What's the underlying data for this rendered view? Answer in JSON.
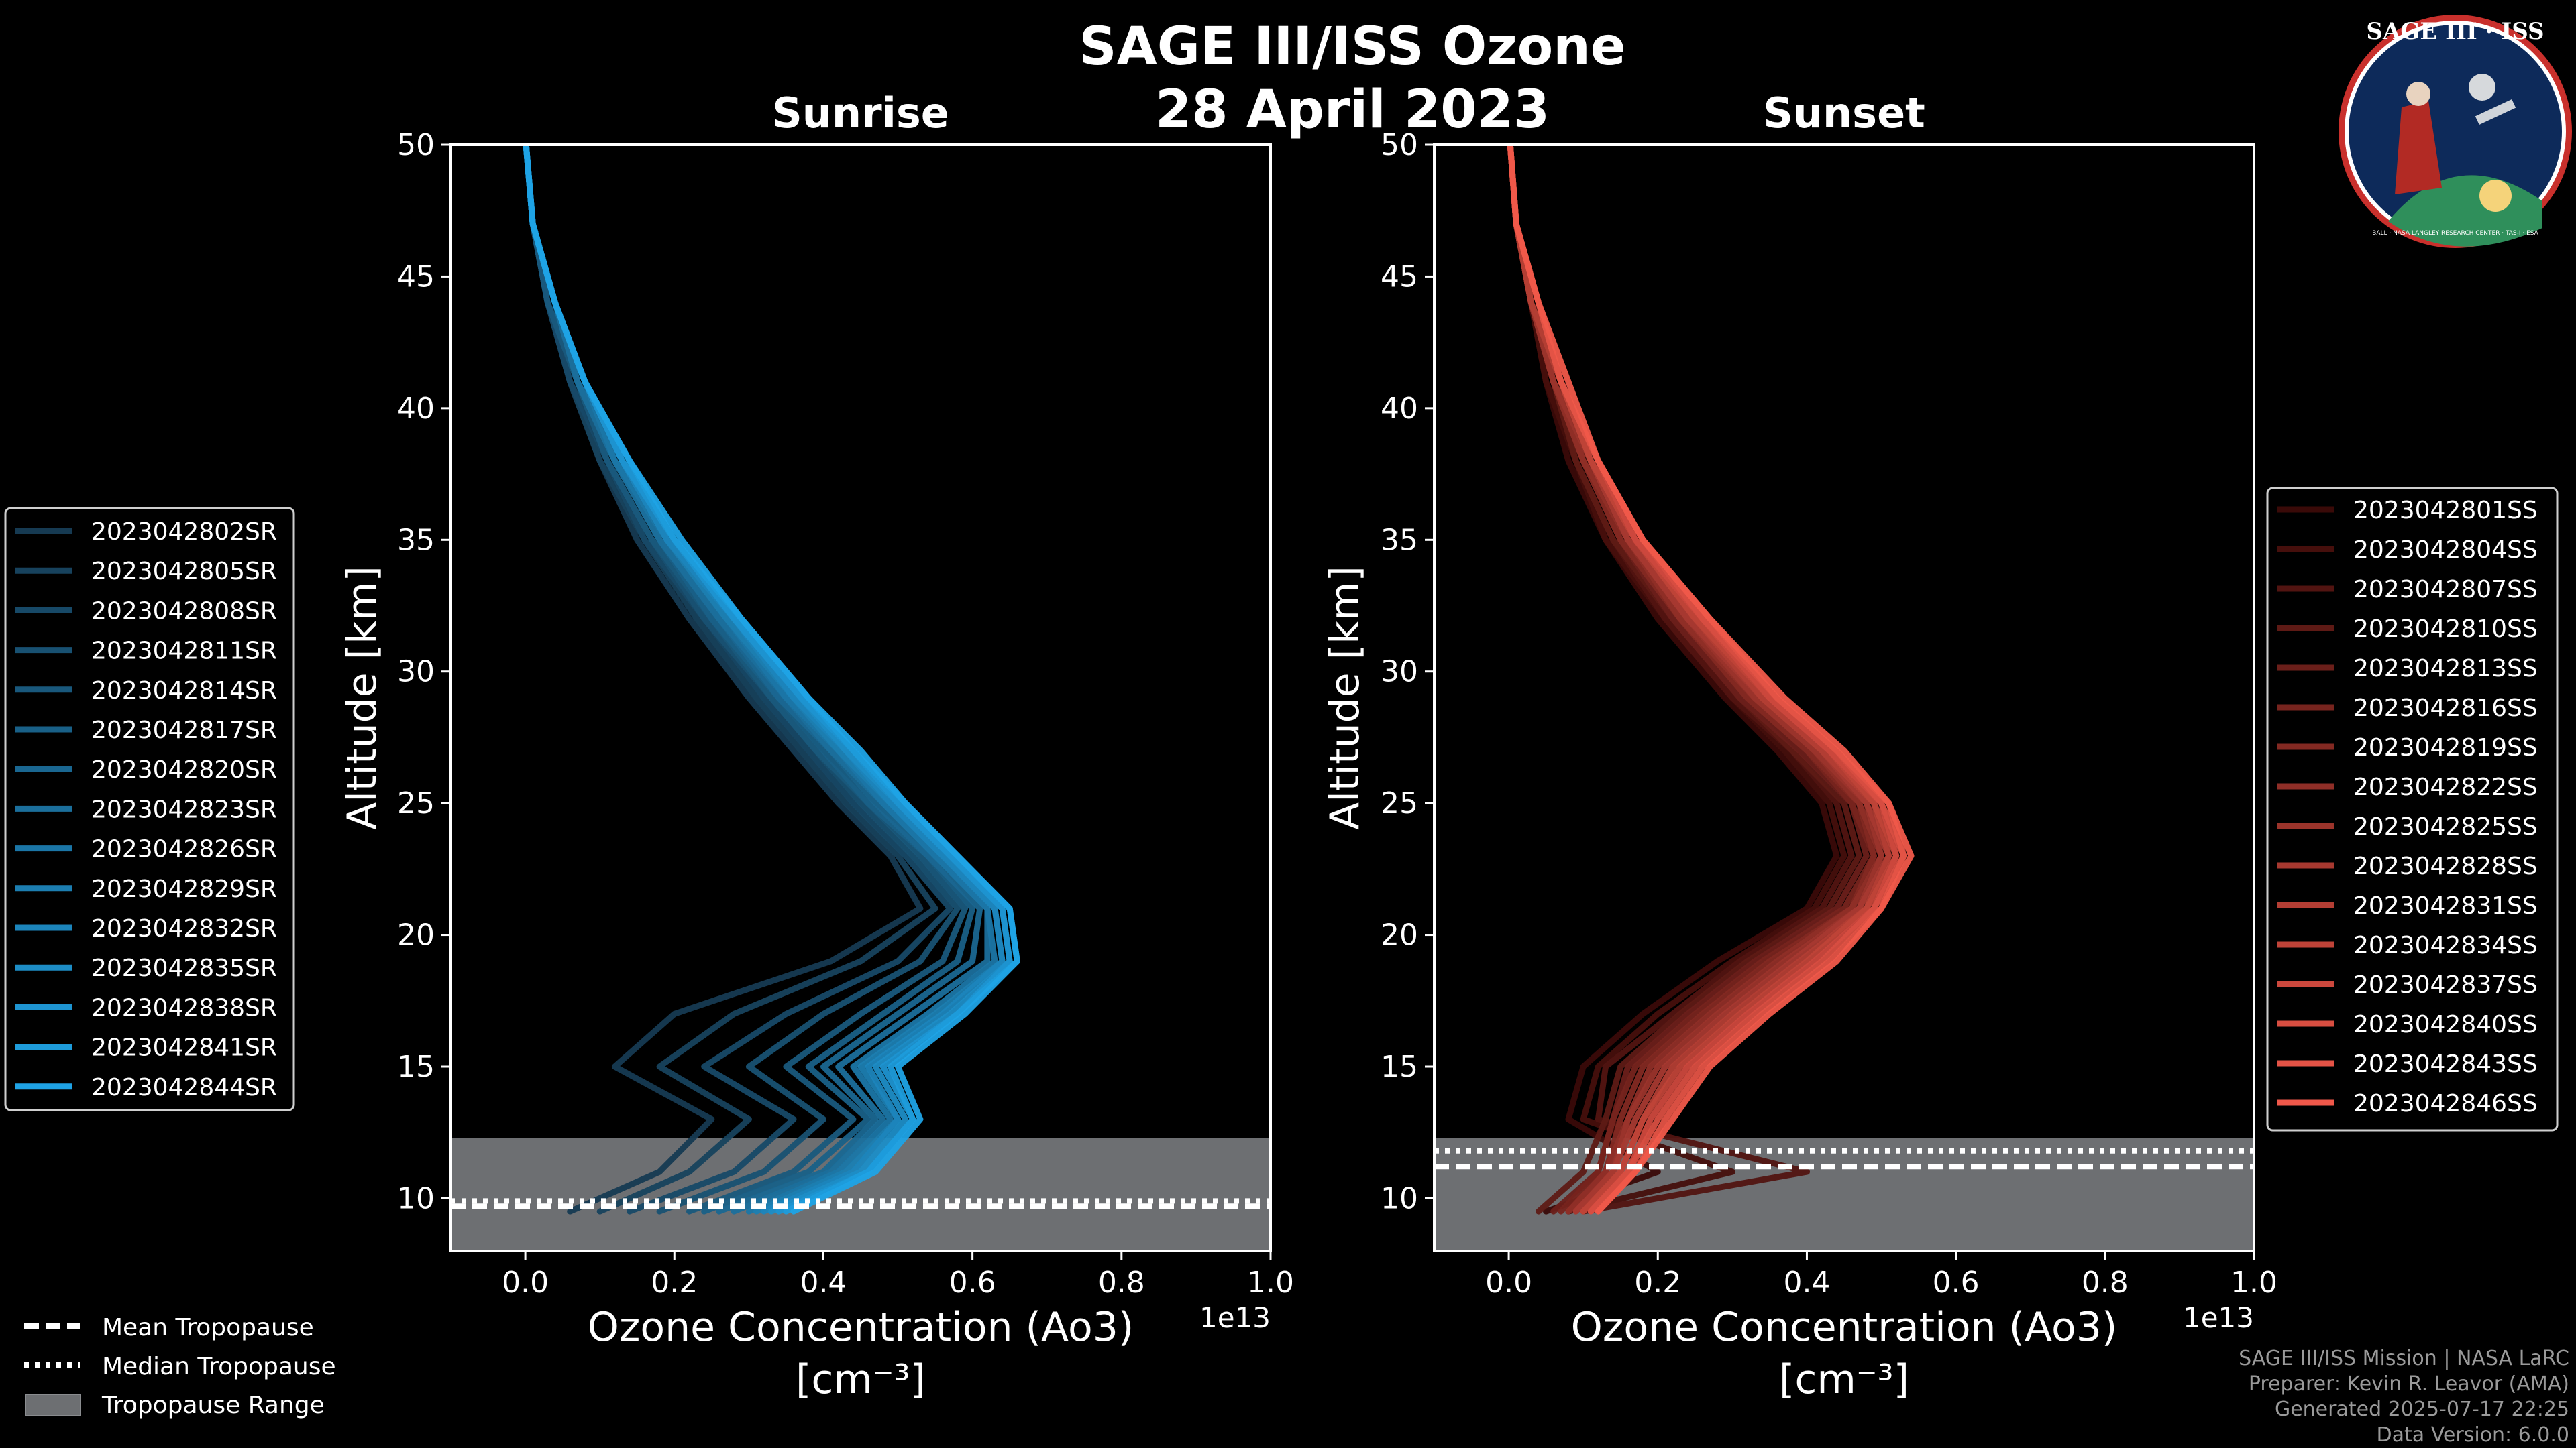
{
  "title_line1": "SAGE III/ISS Ozone",
  "title_line2": "28 April 2023",
  "colors": {
    "background": "#000000",
    "sunrise_light": "#1fa3e6",
    "sunrise_dark": "#163a52",
    "sunset_light": "#f0584a",
    "sunset_dark": "#3a0a08",
    "tropopause_fill": "#6d6f72",
    "axes": "#ffffff"
  },
  "logo": {
    "name": "SAGE III · ISS",
    "ring_text": "BALL · NASA LANGLEY RESEARCH CENTER · TAS-I · ESA"
  },
  "common_legend": {
    "mean": "Mean Tropopause",
    "median": "Median Tropopause",
    "range": "Tropopause Range"
  },
  "credits": {
    "line1": "SAGE III/ISS Mission | NASA LaRC",
    "line2": "Preparer: Kevin R. Leavor (AMA)",
    "line3": "Generated 2025-07-17 22:25",
    "line4": "Data Version: 6.0.0"
  },
  "chart_data": [
    {
      "type": "line",
      "title": "Sunrise",
      "xlabel": "Ozone Concentration (Ao3)",
      "xunit": "[cm⁻³]",
      "ylabel": "Altitude [km]",
      "offset_text": "1e13",
      "xlim": [
        -0.1,
        1.0
      ],
      "ylim": [
        8,
        50
      ],
      "xticks": [
        "0.0",
        "0.2",
        "0.4",
        "0.6",
        "0.8",
        "1.0"
      ],
      "xtick_values": [
        0.0,
        0.2,
        0.4,
        0.6,
        0.8,
        1.0
      ],
      "yticks": [
        "10",
        "15",
        "20",
        "25",
        "30",
        "35",
        "40",
        "45",
        "50"
      ],
      "ytick_values": [
        10,
        15,
        20,
        25,
        30,
        35,
        40,
        45,
        50
      ],
      "tropopause": {
        "mean": 9.7,
        "median": 9.9,
        "range": [
          8,
          12.3
        ]
      },
      "altitudes": [
        50,
        47,
        44,
        41,
        38,
        35,
        32,
        29,
        27,
        25,
        23,
        21,
        19,
        17,
        15,
        13,
        11,
        9.5
      ],
      "series": [
        {
          "name": "2023042802SR",
          "values": [
            0.001,
            0.01,
            0.03,
            0.06,
            0.1,
            0.15,
            0.22,
            0.3,
            0.36,
            0.42,
            0.49,
            0.53,
            0.41,
            0.2,
            0.12,
            0.25,
            0.18,
            0.06
          ]
        },
        {
          "name": "2023042805SR",
          "values": [
            0.001,
            0.01,
            0.03,
            0.06,
            0.1,
            0.16,
            0.23,
            0.31,
            0.37,
            0.43,
            0.5,
            0.55,
            0.45,
            0.28,
            0.18,
            0.3,
            0.22,
            0.1
          ]
        },
        {
          "name": "2023042808SR",
          "values": [
            0.001,
            0.01,
            0.03,
            0.06,
            0.11,
            0.16,
            0.24,
            0.32,
            0.38,
            0.44,
            0.51,
            0.57,
            0.5,
            0.35,
            0.24,
            0.36,
            0.28,
            0.14
          ]
        },
        {
          "name": "2023042811SR",
          "values": [
            0.001,
            0.01,
            0.03,
            0.07,
            0.11,
            0.17,
            0.24,
            0.33,
            0.39,
            0.45,
            0.52,
            0.58,
            0.53,
            0.4,
            0.3,
            0.4,
            0.32,
            0.18
          ]
        },
        {
          "name": "2023042814SR",
          "values": [
            0.001,
            0.01,
            0.03,
            0.07,
            0.11,
            0.17,
            0.25,
            0.33,
            0.39,
            0.46,
            0.53,
            0.59,
            0.56,
            0.45,
            0.35,
            0.44,
            0.36,
            0.22
          ]
        },
        {
          "name": "2023042817SR",
          "values": [
            0.001,
            0.01,
            0.04,
            0.07,
            0.12,
            0.18,
            0.25,
            0.34,
            0.4,
            0.46,
            0.54,
            0.6,
            0.58,
            0.48,
            0.38,
            0.46,
            0.38,
            0.24
          ]
        },
        {
          "name": "2023042820SR",
          "values": [
            0.001,
            0.01,
            0.04,
            0.07,
            0.12,
            0.18,
            0.26,
            0.34,
            0.41,
            0.47,
            0.54,
            0.61,
            0.6,
            0.5,
            0.4,
            0.47,
            0.4,
            0.26
          ]
        },
        {
          "name": "2023042823SR",
          "values": [
            0.001,
            0.01,
            0.04,
            0.07,
            0.12,
            0.18,
            0.26,
            0.35,
            0.41,
            0.48,
            0.55,
            0.62,
            0.62,
            0.52,
            0.42,
            0.48,
            0.41,
            0.28
          ]
        },
        {
          "name": "2023042826SR",
          "values": [
            0.001,
            0.01,
            0.04,
            0.08,
            0.12,
            0.19,
            0.27,
            0.35,
            0.42,
            0.48,
            0.55,
            0.62,
            0.63,
            0.54,
            0.44,
            0.49,
            0.42,
            0.3
          ]
        },
        {
          "name": "2023042829SR",
          "values": [
            0.001,
            0.01,
            0.04,
            0.08,
            0.13,
            0.19,
            0.27,
            0.36,
            0.42,
            0.49,
            0.56,
            0.63,
            0.64,
            0.55,
            0.45,
            0.5,
            0.43,
            0.31
          ]
        },
        {
          "name": "2023042832SR",
          "values": [
            0.001,
            0.01,
            0.04,
            0.08,
            0.13,
            0.19,
            0.28,
            0.36,
            0.43,
            0.49,
            0.56,
            0.63,
            0.64,
            0.56,
            0.46,
            0.5,
            0.44,
            0.32
          ]
        },
        {
          "name": "2023042835SR",
          "values": [
            0.001,
            0.01,
            0.04,
            0.08,
            0.13,
            0.2,
            0.28,
            0.37,
            0.43,
            0.5,
            0.57,
            0.64,
            0.65,
            0.57,
            0.47,
            0.51,
            0.45,
            0.33
          ]
        },
        {
          "name": "2023042838SR",
          "values": [
            0.001,
            0.01,
            0.04,
            0.08,
            0.13,
            0.2,
            0.28,
            0.37,
            0.44,
            0.5,
            0.57,
            0.64,
            0.65,
            0.58,
            0.48,
            0.52,
            0.46,
            0.34
          ]
        },
        {
          "name": "2023042841SR",
          "values": [
            0.001,
            0.01,
            0.04,
            0.08,
            0.14,
            0.2,
            0.29,
            0.38,
            0.44,
            0.51,
            0.58,
            0.65,
            0.66,
            0.58,
            0.49,
            0.52,
            0.46,
            0.35
          ]
        },
        {
          "name": "2023042844SR",
          "values": [
            0.001,
            0.01,
            0.04,
            0.08,
            0.14,
            0.21,
            0.29,
            0.38,
            0.45,
            0.51,
            0.58,
            0.65,
            0.66,
            0.59,
            0.5,
            0.53,
            0.47,
            0.36
          ]
        }
      ]
    },
    {
      "type": "line",
      "title": "Sunset",
      "xlabel": "Ozone Concentration (Ao3)",
      "xunit": "[cm⁻³]",
      "ylabel": "Altitude [km]",
      "offset_text": "1e13",
      "xlim": [
        -0.1,
        1.0
      ],
      "ylim": [
        8,
        50
      ],
      "xticks": [
        "0.0",
        "0.2",
        "0.4",
        "0.6",
        "0.8",
        "1.0"
      ],
      "xtick_values": [
        0.0,
        0.2,
        0.4,
        0.6,
        0.8,
        1.0
      ],
      "yticks": [
        "10",
        "15",
        "20",
        "25",
        "30",
        "35",
        "40",
        "45",
        "50"
      ],
      "ytick_values": [
        10,
        15,
        20,
        25,
        30,
        35,
        40,
        45,
        50
      ],
      "tropopause": {
        "mean": 11.2,
        "median": 11.8,
        "range": [
          8,
          12.3
        ]
      },
      "altitudes": [
        50,
        47,
        44,
        41,
        38,
        35,
        32,
        29,
        27,
        25,
        23,
        21,
        19,
        17,
        15,
        13,
        11,
        9.5
      ],
      "series": [
        {
          "name": "2023042801SS",
          "values": [
            0.002,
            0.01,
            0.03,
            0.05,
            0.08,
            0.13,
            0.2,
            0.29,
            0.36,
            0.42,
            0.44,
            0.4,
            0.28,
            0.18,
            0.1,
            0.08,
            0.2,
            0.05
          ]
        },
        {
          "name": "2023042804SS",
          "values": [
            0.002,
            0.01,
            0.03,
            0.05,
            0.09,
            0.13,
            0.21,
            0.3,
            0.37,
            0.43,
            0.45,
            0.41,
            0.3,
            0.2,
            0.12,
            0.1,
            0.3,
            0.08
          ]
        },
        {
          "name": "2023042807SS",
          "values": [
            0.002,
            0.01,
            0.03,
            0.06,
            0.09,
            0.14,
            0.21,
            0.3,
            0.38,
            0.44,
            0.46,
            0.42,
            0.31,
            0.22,
            0.13,
            0.12,
            0.4,
            0.1
          ]
        },
        {
          "name": "2023042810SS",
          "values": [
            0.002,
            0.01,
            0.03,
            0.06,
            0.09,
            0.14,
            0.22,
            0.31,
            0.38,
            0.45,
            0.47,
            0.43,
            0.32,
            0.23,
            0.15,
            0.13,
            0.1,
            0.04
          ]
        },
        {
          "name": "2023042813SS",
          "values": [
            0.002,
            0.01,
            0.03,
            0.06,
            0.1,
            0.15,
            0.22,
            0.31,
            0.39,
            0.46,
            0.48,
            0.44,
            0.33,
            0.24,
            0.16,
            0.14,
            0.12,
            0.06
          ]
        },
        {
          "name": "2023042816SS",
          "values": [
            0.002,
            0.01,
            0.03,
            0.06,
            0.1,
            0.15,
            0.23,
            0.32,
            0.4,
            0.46,
            0.49,
            0.45,
            0.34,
            0.25,
            0.17,
            0.14,
            0.12,
            0.07
          ]
        },
        {
          "name": "2023042819SS",
          "values": [
            0.002,
            0.01,
            0.03,
            0.06,
            0.1,
            0.15,
            0.23,
            0.32,
            0.4,
            0.47,
            0.49,
            0.46,
            0.35,
            0.26,
            0.18,
            0.15,
            0.13,
            0.08
          ]
        },
        {
          "name": "2023042822SS",
          "values": [
            0.002,
            0.01,
            0.03,
            0.06,
            0.1,
            0.16,
            0.23,
            0.33,
            0.41,
            0.47,
            0.5,
            0.46,
            0.36,
            0.27,
            0.19,
            0.16,
            0.13,
            0.08
          ]
        },
        {
          "name": "2023042825SS",
          "values": [
            0.002,
            0.01,
            0.03,
            0.06,
            0.11,
            0.16,
            0.24,
            0.33,
            0.41,
            0.48,
            0.5,
            0.47,
            0.37,
            0.28,
            0.2,
            0.16,
            0.14,
            0.09
          ]
        },
        {
          "name": "2023042828SS",
          "values": [
            0.002,
            0.01,
            0.03,
            0.07,
            0.11,
            0.16,
            0.24,
            0.34,
            0.42,
            0.48,
            0.51,
            0.47,
            0.38,
            0.29,
            0.21,
            0.17,
            0.14,
            0.09
          ]
        },
        {
          "name": "2023042831SS",
          "values": [
            0.002,
            0.01,
            0.03,
            0.07,
            0.11,
            0.17,
            0.25,
            0.34,
            0.42,
            0.49,
            0.51,
            0.48,
            0.39,
            0.3,
            0.22,
            0.18,
            0.15,
            0.1
          ]
        },
        {
          "name": "2023042834SS",
          "values": [
            0.002,
            0.01,
            0.04,
            0.07,
            0.11,
            0.17,
            0.25,
            0.35,
            0.43,
            0.49,
            0.52,
            0.48,
            0.4,
            0.31,
            0.23,
            0.18,
            0.15,
            0.1
          ]
        },
        {
          "name": "2023042837SS",
          "values": [
            0.002,
            0.01,
            0.04,
            0.07,
            0.12,
            0.17,
            0.26,
            0.35,
            0.43,
            0.5,
            0.52,
            0.49,
            0.41,
            0.32,
            0.24,
            0.19,
            0.16,
            0.11
          ]
        },
        {
          "name": "2023042840SS",
          "values": [
            0.002,
            0.01,
            0.04,
            0.07,
            0.12,
            0.18,
            0.26,
            0.36,
            0.44,
            0.5,
            0.53,
            0.49,
            0.42,
            0.33,
            0.25,
            0.2,
            0.16,
            0.11
          ]
        },
        {
          "name": "2023042843SS",
          "values": [
            0.002,
            0.01,
            0.04,
            0.07,
            0.12,
            0.18,
            0.27,
            0.36,
            0.44,
            0.51,
            0.53,
            0.5,
            0.43,
            0.34,
            0.26,
            0.21,
            0.17,
            0.12
          ]
        },
        {
          "name": "2023042846SS",
          "values": [
            0.002,
            0.01,
            0.04,
            0.08,
            0.12,
            0.18,
            0.27,
            0.37,
            0.45,
            0.51,
            0.54,
            0.5,
            0.44,
            0.35,
            0.27,
            0.22,
            0.17,
            0.12
          ]
        }
      ]
    }
  ]
}
